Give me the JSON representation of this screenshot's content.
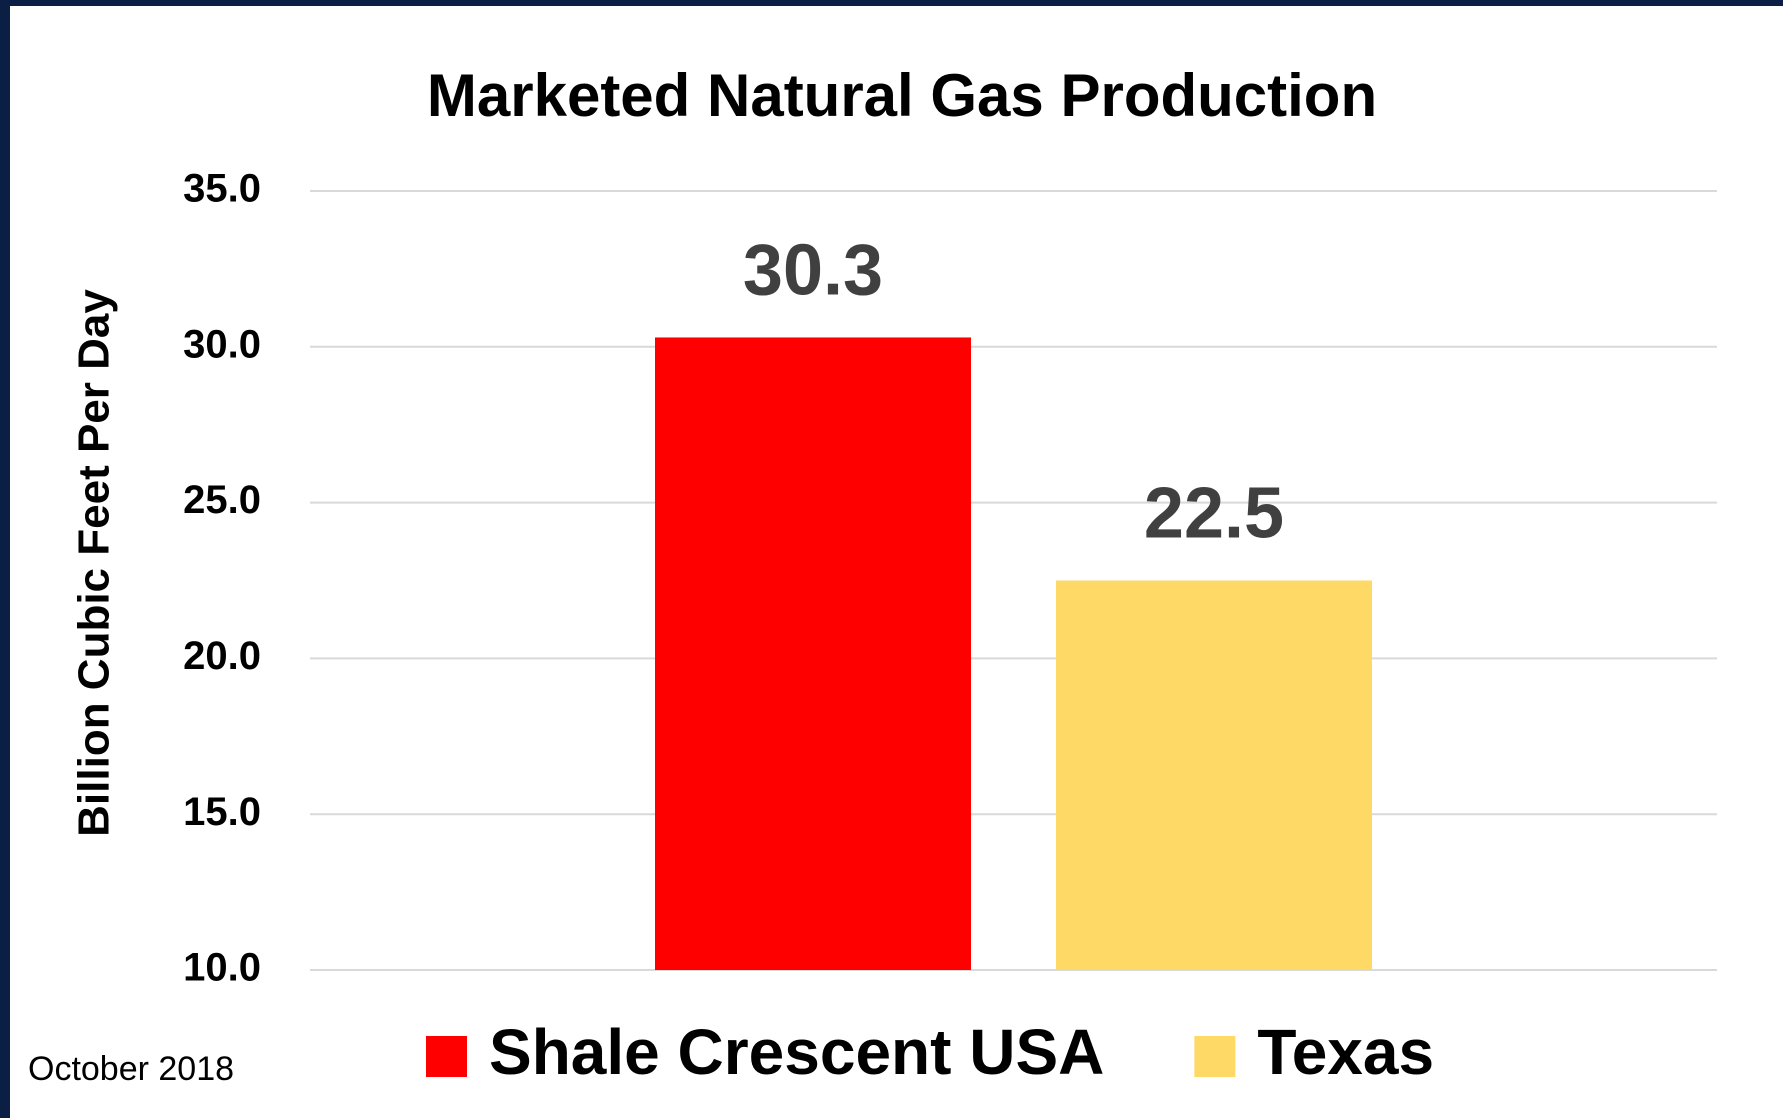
{
  "chart_data": {
    "type": "bar",
    "title": "Marketed Natural Gas Production",
    "y_label": "Billion Cubic Feet Per Day",
    "annotation": "October 2018",
    "categories": [
      null
    ],
    "series": [
      {
        "name": "Shale Crescent USA",
        "color": "#ff0000",
        "values": [
          30.3
        ]
      },
      {
        "name": "Texas",
        "color": "#ffd966",
        "values": [
          22.5
        ]
      }
    ],
    "ylim": [
      10,
      35
    ],
    "yticks": [
      {
        "value": 10,
        "label": "10.0"
      },
      {
        "value": 15,
        "label": "15.0"
      },
      {
        "value": 20,
        "label": "20.0"
      },
      {
        "value": 25,
        "label": "25.0"
      },
      {
        "value": 30,
        "label": "30.0"
      },
      {
        "value": 35,
        "label": "35.0"
      }
    ],
    "grid": true,
    "legend": "bottom"
  }
}
